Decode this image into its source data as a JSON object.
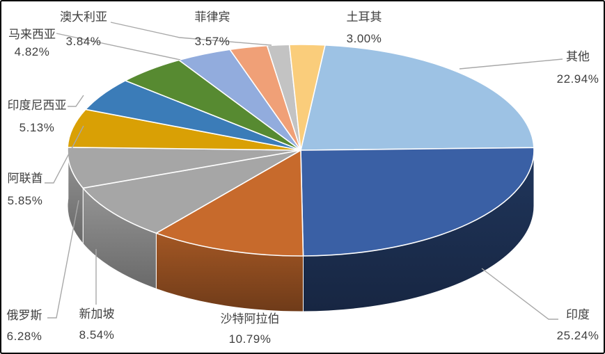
{
  "frame": {
    "background": "#FFFFFF",
    "border_color": "#000000"
  },
  "chart_data": {
    "type": "pie",
    "style": "3d-pie",
    "title": "",
    "legend_position": "none",
    "unit": "%",
    "direction": "clockwise",
    "start_angle_deg": 6,
    "points": [
      {
        "label": "其他",
        "value": 22.94,
        "pct_label": "22.94%",
        "color": "#9DC2E4"
      },
      {
        "label": "印度",
        "value": 25.24,
        "pct_label": "25.24%",
        "color": "#3A60A5"
      },
      {
        "label": "沙特阿拉伯",
        "value": 10.79,
        "pct_label": "10.79%",
        "color": "#C76A2C"
      },
      {
        "label": "新加坡",
        "value": 8.54,
        "pct_label": "8.54%",
        "color": "#A6A6A6"
      },
      {
        "label": "俄罗斯",
        "value": 6.28,
        "pct_label": "6.28%",
        "color": "#A6A6A6"
      },
      {
        "label": "阿联酋",
        "value": 5.85,
        "pct_label": "5.85%",
        "color": "#D9A005"
      },
      {
        "label": "印度尼西亚",
        "value": 5.13,
        "pct_label": "5.13%",
        "color": "#3B7CB8"
      },
      {
        "label": "马来西亚",
        "value": 4.82,
        "pct_label": "4.82%",
        "color": "#578A31"
      },
      {
        "label": "澳大利亚",
        "value": 3.84,
        "pct_label": "3.84%",
        "color": "#92ACDD"
      },
      {
        "label": "菲律宾",
        "value": 3.57,
        "pct_label": "3.57%",
        "color": "#F0A077"
      },
      {
        "label": "土耳其",
        "value": 3.0,
        "pct_label": "3.00%",
        "color": "#FACD7B"
      }
    ],
    "unlabeled_gray_wedge": {
      "color": "#C3C3C3"
    },
    "separator_color": "#FFFFFF",
    "leader_line_color": "#A8A8A8",
    "label_text_color": "#3F3F3F"
  }
}
